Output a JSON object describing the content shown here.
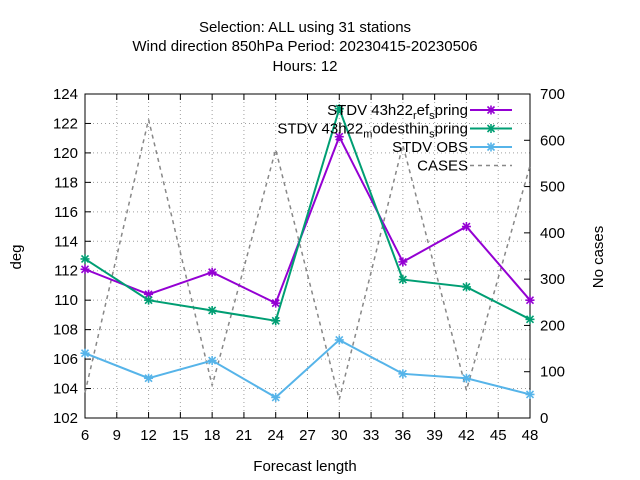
{
  "chart_data": {
    "type": "line",
    "title_lines": [
      "Selection: ALL using    31 stations",
      "Wind direction 850hPa   Period: 20230415-20230506",
      "Hours:  12"
    ],
    "xlabel": "Forecast length",
    "ylabel": "deg",
    "y2label": "No cases",
    "x": [
      6,
      12,
      18,
      24,
      30,
      36,
      42,
      48
    ],
    "xticks": [
      6,
      9,
      12,
      15,
      18,
      21,
      24,
      27,
      30,
      33,
      36,
      39,
      42,
      45,
      48
    ],
    "xlim": [
      6,
      48
    ],
    "ylim": [
      102,
      124
    ],
    "yticks": [
      102,
      104,
      106,
      108,
      110,
      112,
      114,
      116,
      118,
      120,
      122,
      124
    ],
    "y2lim": [
      0,
      700
    ],
    "y2ticks": [
      0,
      100,
      200,
      300,
      400,
      500,
      600,
      700
    ],
    "grid": true,
    "legend_position": "top-right",
    "series": [
      {
        "name": "STDV 43h22_ref_spring",
        "legend_parts": [
          "STDV 43h22",
          "r",
          "ef",
          "s",
          "pring"
        ],
        "color": "#9400d3",
        "marker": "x",
        "axis": "y",
        "values": [
          112.1,
          110.4,
          111.9,
          109.8,
          121.1,
          112.6,
          115.0,
          110.0
        ]
      },
      {
        "name": "STDV 43h22_modesthin_spring",
        "legend_parts": [
          "STDV 43h22",
          "m",
          "odesthin",
          "s",
          "pring"
        ],
        "color": "#009e73",
        "marker": "x",
        "axis": "y",
        "values": [
          112.8,
          110.0,
          109.3,
          108.6,
          123.0,
          111.4,
          110.9,
          108.7
        ]
      },
      {
        "name": "STDV OBS",
        "color": "#56b4e9",
        "marker": "x",
        "axis": "y",
        "values": [
          106.4,
          104.7,
          105.9,
          103.4,
          107.3,
          105.0,
          104.7,
          103.6
        ]
      },
      {
        "name": "CASES",
        "color": "#888888",
        "dashed": true,
        "axis": "y2",
        "values": [
          55,
          645,
          70,
          580,
          40,
          590,
          60,
          545
        ]
      }
    ]
  }
}
